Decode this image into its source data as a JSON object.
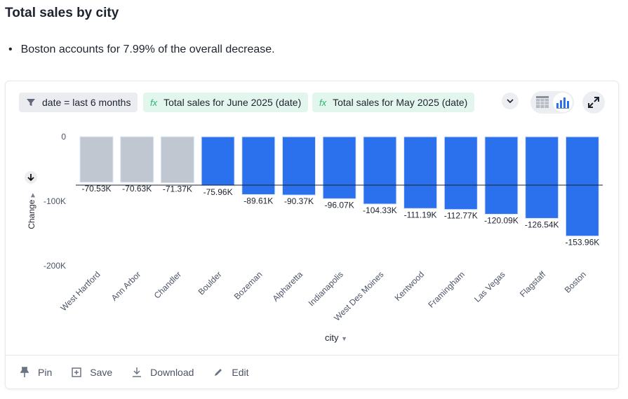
{
  "title": "Total sales by city",
  "insight": "Boston accounts for 7.99% of the overall decrease.",
  "chips": {
    "filter": "date = last 6 months",
    "formula1": "Total sales for June 2025 (date)",
    "formula2": "Total sales for May 2025 (date)"
  },
  "icons": {
    "filter": "filter-icon",
    "formula": "fx-icon",
    "more": "chevron-down-icon",
    "table": "table-icon",
    "chart": "bar-chart-icon",
    "expand": "expand-icon"
  },
  "footer": {
    "pin": "Pin",
    "save": "Save",
    "download": "Download",
    "edit": "Edit"
  },
  "chart_data": {
    "type": "bar",
    "title": "",
    "xlabel": "city",
    "ylabel": "Change",
    "categories": [
      "West Hartford",
      "Ann Arbor",
      "Chandler",
      "Boulder",
      "Bozeman",
      "Alpharetta",
      "Indianapolis",
      "West Des Moines",
      "Kentwood",
      "Framingham",
      "Las Vegas",
      "Flagstaff",
      "Boston"
    ],
    "values": [
      -70530,
      -70630,
      -71370,
      -75960,
      -89610,
      -90370,
      -96070,
      -104330,
      -111190,
      -112770,
      -120090,
      -126540,
      -153960
    ],
    "data_labels": [
      "-70.53K",
      "-70.63K",
      "-71.37K",
      "-75.96K",
      "-89.61K",
      "-90.37K",
      "-96.07K",
      "-104.33K",
      "-111.19K",
      "-112.77K",
      "-120.09K",
      "-126.54K",
      "-153.96K"
    ],
    "highlighted": [
      false,
      false,
      false,
      true,
      true,
      true,
      true,
      true,
      true,
      true,
      true,
      true,
      true
    ],
    "y_ticks": [
      0,
      -100000,
      -200000
    ],
    "y_tick_labels": [
      "0",
      "-100K",
      "-200K"
    ],
    "ylim": [
      -200000,
      0
    ],
    "reference_line": -75000,
    "grid": false,
    "colors": {
      "highlight": "#2b70ed",
      "muted": "#c0c7d0",
      "reference": "#2b70ed"
    }
  }
}
